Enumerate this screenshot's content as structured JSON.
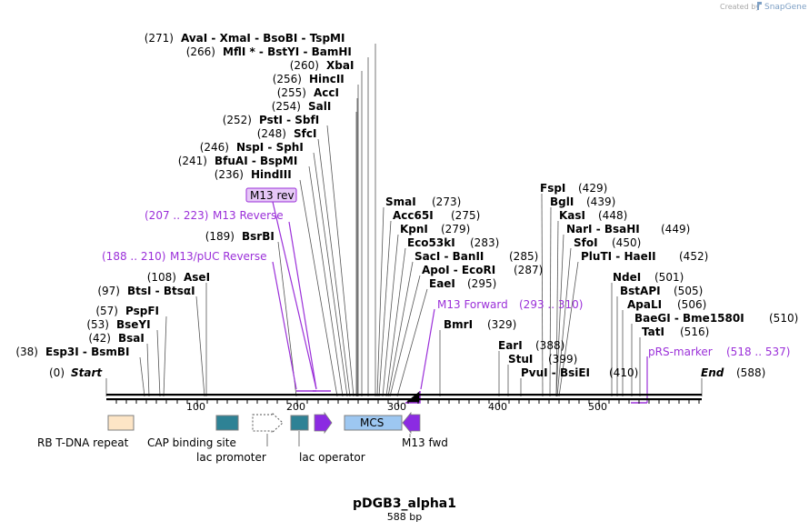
{
  "credit": {
    "prefix": "Created by",
    "brand": "SnapGene"
  },
  "plasmid": {
    "name": "pDGB3_alpha1",
    "length": "588 bp"
  },
  "map": {
    "ends": {
      "start_label": "Start",
      "start_pos": "(0)",
      "end_label": "End",
      "end_pos": "(588)"
    },
    "ticks": [
      "100",
      "200",
      "300",
      "400",
      "500"
    ],
    "sites_left": [
      {
        "pos": "(271)",
        "names": "AvaI  - XmaI  - BsoBI  - TspMI"
      },
      {
        "pos": "(266)",
        "names": "MflI * - BstYI  - BamHI"
      },
      {
        "pos": "(260)",
        "names": "XbaI"
      },
      {
        "pos": "(256)",
        "names": "HincII"
      },
      {
        "pos": "(255)",
        "names": "AccI"
      },
      {
        "pos": "(254)",
        "names": "SalI"
      },
      {
        "pos": "(252)",
        "names": "PstI  - SbfI"
      },
      {
        "pos": "(248)",
        "names": "SfcI"
      },
      {
        "pos": "(246)",
        "names": "NspI  - SphI"
      },
      {
        "pos": "(241)",
        "names": "BfuAI  - BspMI"
      },
      {
        "pos": "(236)",
        "names": "HindIII"
      },
      {
        "pos": "(189)",
        "names": "BsrBI"
      },
      {
        "pos": "(108)",
        "names": "AseI"
      },
      {
        "pos": "(97)",
        "names": "BtsI  - BtsαI"
      },
      {
        "pos": "(57)",
        "names": "PspFI"
      },
      {
        "pos": "(53)",
        "names": "BseYI"
      },
      {
        "pos": "(42)",
        "names": "BsaI"
      },
      {
        "pos": "(38)",
        "names": "Esp3I  - BsmBI"
      }
    ],
    "sites_mid": [
      {
        "names": "SmaI",
        "pos": "(273)"
      },
      {
        "names": "Acc65I",
        "pos": "(275)"
      },
      {
        "names": "KpnI",
        "pos": "(279)"
      },
      {
        "names": "Eco53kI",
        "pos": "(283)"
      },
      {
        "names": "SacI  - BanII",
        "pos": "(285)"
      },
      {
        "names": "ApoI  - EcoRI",
        "pos": "(287)"
      },
      {
        "names": "EaeI",
        "pos": "(295)"
      },
      {
        "names": "BmrI",
        "pos": "(329)"
      },
      {
        "names": "EarI",
        "pos": "(388)"
      },
      {
        "names": "StuI",
        "pos": "(399)"
      },
      {
        "names": "PvuI  - BsiEI",
        "pos": "(410)"
      }
    ],
    "sites_right": [
      {
        "names": "FspI",
        "pos": "(429)"
      },
      {
        "names": "BglI",
        "pos": "(439)"
      },
      {
        "names": "KasI",
        "pos": "(448)"
      },
      {
        "names": "NarI  - BsaHI",
        "pos": "(449)"
      },
      {
        "names": "SfoI",
        "pos": "(450)"
      },
      {
        "names": "PluTI  - HaeII",
        "pos": "(452)"
      },
      {
        "names": "NdeI",
        "pos": "(501)"
      },
      {
        "names": "BstAPI",
        "pos": "(505)"
      },
      {
        "names": "ApaLI",
        "pos": "(506)"
      },
      {
        "names": "BaeGI  - Bme1580I",
        "pos": "(510)"
      },
      {
        "names": "TatI",
        "pos": "(516)"
      }
    ],
    "primers": [
      {
        "label": "M13 rev",
        "boxed": true
      },
      {
        "range": "(207 .. 223)",
        "label": "M13 Reverse"
      },
      {
        "range": "(188 .. 210)",
        "label": "M13/pUC Reverse"
      },
      {
        "label": "M13 Forward",
        "range": "(293 .. 310)"
      },
      {
        "label": "pRS-marker",
        "range": "(518 .. 537)"
      }
    ],
    "features": [
      {
        "label": "RB T-DNA repeat",
        "color": "#fde5c6"
      },
      {
        "label": "CAP binding site",
        "color": "#2e8295"
      },
      {
        "label": "lac promoter",
        "color": "#ffffff"
      },
      {
        "label": "lac operator",
        "color": "#2e8295"
      },
      {
        "label": "MCS",
        "color": "#9dc7f1"
      },
      {
        "label": "M13 fwd",
        "color": "#8b2be2"
      }
    ],
    "colors": {
      "primer": "#9b30d9",
      "backbone": "#000000"
    }
  }
}
